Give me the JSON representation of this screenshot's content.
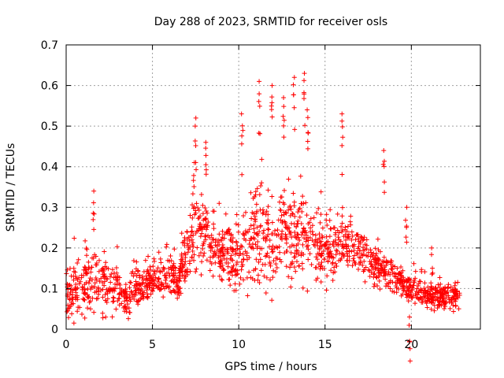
{
  "chart_data": {
    "type": "scatter",
    "title": "Day 288 of 2023, SRMTID for receiver osls",
    "xlabel": "GPS time / hours",
    "ylabel": "SRMTID / TECUs",
    "xlim": [
      0,
      24
    ],
    "ylim": [
      0,
      0.7
    ],
    "xticks": [
      0,
      5,
      10,
      15,
      20
    ],
    "xtick_labels": [
      "0",
      "5",
      "10",
      "15",
      "20"
    ],
    "yticks": [
      0,
      0.1,
      0.2,
      0.3,
      0.4,
      0.5,
      0.6,
      0.7
    ],
    "ytick_labels": [
      "0",
      "0.1",
      "0.2",
      "0.3",
      "0.4",
      "0.5",
      "0.6",
      "0.7"
    ],
    "grid": true,
    "marker": "+",
    "series": [
      {
        "name": "osls",
        "color": "#ff0000",
        "profile_hours": [
          0,
          1,
          2,
          3,
          3.5,
          4,
          5,
          6,
          6.5,
          7,
          7.5,
          8,
          9,
          10,
          10.5,
          11,
          11.5,
          12,
          12.5,
          13,
          13.5,
          14,
          15,
          16,
          17,
          18,
          19,
          20,
          21,
          22,
          22.8
        ],
        "profile_median": [
          0.09,
          0.1,
          0.11,
          0.1,
          0.07,
          0.1,
          0.12,
          0.13,
          0.12,
          0.2,
          0.25,
          0.24,
          0.19,
          0.18,
          0.22,
          0.24,
          0.22,
          0.21,
          0.23,
          0.22,
          0.24,
          0.22,
          0.19,
          0.22,
          0.19,
          0.15,
          0.13,
          0.1,
          0.08,
          0.08,
          0.08
        ],
        "profile_spread": [
          0.06,
          0.07,
          0.07,
          0.06,
          0.04,
          0.05,
          0.04,
          0.04,
          0.04,
          0.07,
          0.08,
          0.07,
          0.06,
          0.08,
          0.1,
          0.11,
          0.11,
          0.1,
          0.1,
          0.1,
          0.11,
          0.09,
          0.07,
          0.07,
          0.06,
          0.05,
          0.04,
          0.03,
          0.03,
          0.03,
          0.03
        ],
        "peaks": [
          {
            "x": 1.6,
            "y": 0.34
          },
          {
            "x": 7.4,
            "y": 0.41
          },
          {
            "x": 7.5,
            "y": 0.52
          },
          {
            "x": 8.1,
            "y": 0.46
          },
          {
            "x": 10.2,
            "y": 0.53
          },
          {
            "x": 11.2,
            "y": 0.61
          },
          {
            "x": 11.9,
            "y": 0.6
          },
          {
            "x": 12.6,
            "y": 0.57
          },
          {
            "x": 13.2,
            "y": 0.62
          },
          {
            "x": 13.8,
            "y": 0.63
          },
          {
            "x": 14.0,
            "y": 0.54
          },
          {
            "x": 16.0,
            "y": 0.53
          },
          {
            "x": 18.4,
            "y": 0.44
          },
          {
            "x": 19.7,
            "y": 0.3
          },
          {
            "x": 21.2,
            "y": 0.2
          },
          {
            "x": 19.9,
            "y": 0.03
          }
        ]
      }
    ]
  }
}
